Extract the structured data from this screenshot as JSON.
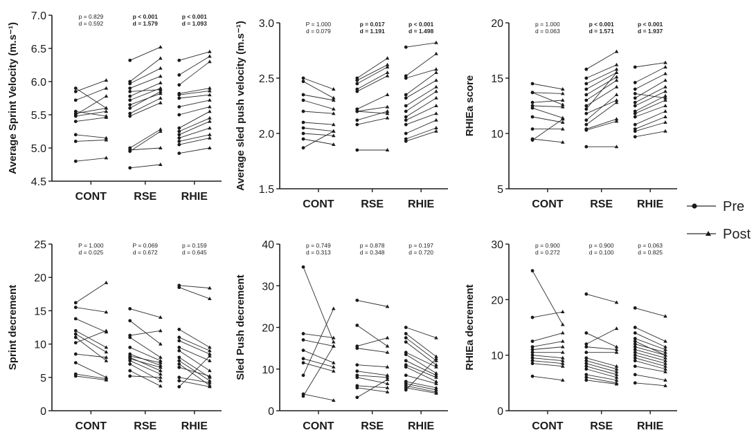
{
  "legend": {
    "pre_label": "Pre",
    "post_label": "Post",
    "pre_marker": "circle",
    "post_marker": "triangle",
    "placement": "right"
  },
  "colors": {
    "line": "#2b2b2b",
    "marker": "#1a1a1a",
    "axis": "#1a1a1a"
  },
  "chart_data": [
    {
      "type": "line",
      "ylabel": "Average Sprint Velocity (m.s⁻¹)",
      "ylim": [
        4.5,
        7.0
      ],
      "yticks": [
        "4.5",
        "5.0",
        "5.5",
        "6.0",
        "6.5",
        "7.0"
      ],
      "categories": [
        "CONT",
        "RSE",
        "RHIE"
      ],
      "stats": [
        {
          "p": "p = 0.829",
          "d": "d = 0.592",
          "bold": false
        },
        {
          "p": "p < 0.001",
          "d": "d = 1.579",
          "bold": true
        },
        {
          "p": "p < 0.001",
          "d": "d = 1.093",
          "bold": true
        }
      ],
      "pairs": [
        [
          [
            5.9,
            5.6
          ],
          [
            5.85,
            6.02
          ],
          [
            5.5,
            5.78
          ],
          [
            5.48,
            5.55
          ],
          [
            5.4,
            5.46
          ],
          [
            5.55,
            5.48
          ],
          [
            5.2,
            5.15
          ],
          [
            5.1,
            5.12
          ],
          [
            4.8,
            4.85
          ],
          [
            5.72,
            5.9
          ],
          [
            5.52,
            5.6
          ]
        ],
        [
          [
            6.32,
            6.52
          ],
          [
            6.0,
            6.35
          ],
          [
            5.97,
            6.2
          ],
          [
            5.9,
            6.08
          ],
          [
            5.85,
            5.88
          ],
          [
            5.78,
            5.98
          ],
          [
            5.72,
            5.9
          ],
          [
            5.65,
            5.82
          ],
          [
            5.6,
            5.85
          ],
          [
            5.52,
            5.75
          ],
          [
            5.48,
            5.68
          ],
          [
            5.0,
            5.28
          ],
          [
            4.95,
            5.25
          ],
          [
            4.97,
            5.0
          ],
          [
            4.7,
            4.75
          ]
        ],
        [
          [
            6.32,
            6.45
          ],
          [
            6.1,
            6.38
          ],
          [
            5.95,
            6.3
          ],
          [
            5.82,
            5.9
          ],
          [
            5.8,
            5.86
          ],
          [
            5.75,
            5.8
          ],
          [
            5.62,
            5.72
          ],
          [
            5.5,
            5.62
          ],
          [
            5.25,
            5.45
          ],
          [
            5.2,
            5.4
          ],
          [
            5.15,
            5.3
          ],
          [
            5.1,
            5.2
          ],
          [
            5.05,
            5.15
          ],
          [
            4.92,
            5.0
          ],
          [
            5.3,
            5.55
          ]
        ]
      ]
    },
    {
      "type": "line",
      "ylabel": "Average sled push velocity (m.s⁻¹)",
      "ylim": [
        1.5,
        3.0
      ],
      "yticks": [
        "1.5",
        "2.0",
        "2.5",
        "3.0"
      ],
      "categories": [
        "CONT",
        "RSE",
        "RHIE"
      ],
      "stats": [
        {
          "p": "P = 1.000",
          "d": "d = 0.079",
          "bold": false
        },
        {
          "p": "p = 0.017",
          "d": "d = 1.191",
          "bold": true
        },
        {
          "p": "p < 0.001",
          "d": "d = 1.498",
          "bold": true
        }
      ],
      "pairs": [
        [
          [
            2.5,
            2.4
          ],
          [
            2.47,
            2.32
          ],
          [
            2.35,
            2.3
          ],
          [
            2.3,
            2.22
          ],
          [
            2.2,
            2.18
          ],
          [
            2.1,
            2.08
          ],
          [
            2.05,
            2.02
          ],
          [
            2.0,
            1.98
          ],
          [
            1.95,
            1.9
          ],
          [
            1.87,
            2.02
          ]
        ],
        [
          [
            2.5,
            2.68
          ],
          [
            2.48,
            2.62
          ],
          [
            2.45,
            2.6
          ],
          [
            2.38,
            2.52
          ],
          [
            2.22,
            2.35
          ],
          [
            2.2,
            2.24
          ],
          [
            2.2,
            2.18
          ],
          [
            2.12,
            2.2
          ],
          [
            2.08,
            2.14
          ],
          [
            1.85,
            1.85
          ],
          [
            2.4,
            2.55
          ]
        ],
        [
          [
            2.78,
            2.82
          ],
          [
            2.52,
            2.72
          ],
          [
            2.5,
            2.58
          ],
          [
            2.35,
            2.55
          ],
          [
            2.32,
            2.48
          ],
          [
            2.25,
            2.42
          ],
          [
            2.2,
            2.38
          ],
          [
            2.15,
            2.32
          ],
          [
            2.12,
            2.25
          ],
          [
            2.08,
            2.18
          ],
          [
            2.0,
            2.12
          ],
          [
            1.95,
            2.05
          ],
          [
            1.93,
            2.02
          ]
        ]
      ]
    },
    {
      "type": "line",
      "ylabel": "RHIEa score",
      "ylim": [
        5,
        20
      ],
      "yticks": [
        "5",
        "10",
        "15",
        "20"
      ],
      "categories": [
        "CONT",
        "RSE",
        "RHIE"
      ],
      "stats": [
        {
          "p": "p = 1.000",
          "d": "d = 0.063",
          "bold": false
        },
        {
          "p": "p < 0.001",
          "d": "d = 1.571",
          "bold": true
        },
        {
          "p": "p < 0.001",
          "d": "d = 1.937",
          "bold": true
        }
      ],
      "pairs": [
        [
          [
            14.5,
            14.0
          ],
          [
            13.7,
            13.6
          ],
          [
            12.8,
            13.0
          ],
          [
            12.5,
            12.4
          ],
          [
            12.3,
            11.4
          ],
          [
            11.5,
            11.0
          ],
          [
            10.4,
            10.4
          ],
          [
            9.5,
            9.2
          ],
          [
            9.4,
            11.3
          ],
          [
            13.7,
            12.6
          ]
        ],
        [
          [
            15.8,
            17.4
          ],
          [
            15.0,
            16.2
          ],
          [
            14.5,
            15.8
          ],
          [
            14.0,
            15.5
          ],
          [
            13.5,
            15.1
          ],
          [
            13.0,
            14.8
          ],
          [
            12.5,
            14.2
          ],
          [
            11.8,
            13.0
          ],
          [
            11.2,
            13.5
          ],
          [
            10.8,
            12.8
          ],
          [
            10.4,
            11.3
          ],
          [
            10.3,
            11.1
          ],
          [
            8.8,
            8.8
          ],
          [
            12.2,
            15.5
          ]
        ],
        [
          [
            16.0,
            16.4
          ],
          [
            14.6,
            16.0
          ],
          [
            14.0,
            15.4
          ],
          [
            13.2,
            14.8
          ],
          [
            12.8,
            14.2
          ],
          [
            12.5,
            13.8
          ],
          [
            12.0,
            13.4
          ],
          [
            11.8,
            13.0
          ],
          [
            11.5,
            12.5
          ],
          [
            10.8,
            12.0
          ],
          [
            10.4,
            11.5
          ],
          [
            10.2,
            11.0
          ],
          [
            9.7,
            10.2
          ],
          [
            13.6,
            13.2
          ]
        ]
      ]
    },
    {
      "type": "line",
      "ylabel": "Sprint decrement",
      "ylim": [
        0,
        25
      ],
      "yticks": [
        "0",
        "5",
        "10",
        "15",
        "20",
        "25"
      ],
      "categories": [
        "CONT",
        "RSE",
        "RHIE"
      ],
      "stats": [
        {
          "p": "P = 1.000",
          "d": "d = 0.025",
          "bold": false
        },
        {
          "p": "P = 0.069",
          "d": "d = 0.672",
          "bold": false
        },
        {
          "p": "p = 0.159",
          "d": "d = 0.645",
          "bold": false
        }
      ],
      "pairs": [
        [
          [
            16.2,
            19.2
          ],
          [
            15.5,
            14.8
          ],
          [
            13.8,
            11.8
          ],
          [
            12.0,
            9.5
          ],
          [
            11.5,
            8.8
          ],
          [
            11.0,
            7.5
          ],
          [
            10.2,
            12.0
          ],
          [
            8.5,
            8.0
          ],
          [
            7.2,
            5.0
          ],
          [
            5.5,
            4.8
          ],
          [
            5.2,
            4.6
          ]
        ],
        [
          [
            15.3,
            14.0
          ],
          [
            13.5,
            10.0
          ],
          [
            11.3,
            12.0
          ],
          [
            11.0,
            8.0
          ],
          [
            9.5,
            7.5
          ],
          [
            8.5,
            6.8
          ],
          [
            8.2,
            7.2
          ],
          [
            8.0,
            6.0
          ],
          [
            7.8,
            6.5
          ],
          [
            7.5,
            5.5
          ],
          [
            7.0,
            4.5
          ],
          [
            6.0,
            3.7
          ],
          [
            5.2,
            5.0
          ]
        ],
        [
          [
            18.8,
            18.4
          ],
          [
            18.5,
            16.8
          ],
          [
            12.2,
            9.5
          ],
          [
            11.0,
            9.0
          ],
          [
            10.5,
            8.5
          ],
          [
            9.5,
            7.5
          ],
          [
            9.0,
            6.0
          ],
          [
            8.0,
            5.0
          ],
          [
            7.5,
            4.5
          ],
          [
            7.0,
            3.8
          ],
          [
            6.5,
            5.2
          ],
          [
            5.0,
            4.2
          ],
          [
            4.5,
            3.6
          ],
          [
            3.6,
            8.2
          ]
        ]
      ]
    },
    {
      "type": "line",
      "ylabel": "Sled Push decrement",
      "ylim": [
        0,
        40
      ],
      "yticks": [
        "0",
        "10",
        "20",
        "30",
        "40"
      ],
      "categories": [
        "CONT",
        "RSE",
        "RHIE"
      ],
      "stats": [
        {
          "p": "p = 0.749",
          "d": "d = 0.313",
          "bold": false
        },
        {
          "p": "p = 0.878",
          "d": "d = 0.348",
          "bold": false
        },
        {
          "p": "p = 0.197",
          "d": "d = 0.720",
          "bold": false
        }
      ],
      "pairs": [
        [
          [
            34.5,
            16.5
          ],
          [
            18.5,
            17.5
          ],
          [
            17.0,
            15.5
          ],
          [
            14.5,
            11.5
          ],
          [
            12.5,
            10.5
          ],
          [
            11.5,
            9.5
          ],
          [
            8.5,
            24.5
          ],
          [
            4.0,
            2.5
          ],
          [
            3.5,
            15.5
          ]
        ],
        [
          [
            26.5,
            25.0
          ],
          [
            20.5,
            15.5
          ],
          [
            15.5,
            17.5
          ],
          [
            15.0,
            14.0
          ],
          [
            11.0,
            10.5
          ],
          [
            9.5,
            8.5
          ],
          [
            8.5,
            8.0
          ],
          [
            8.0,
            6.5
          ],
          [
            6.0,
            5.5
          ],
          [
            5.5,
            4.5
          ],
          [
            3.2,
            7.5
          ]
        ],
        [
          [
            20.0,
            17.5
          ],
          [
            18.5,
            13.0
          ],
          [
            17.5,
            12.0
          ],
          [
            16.5,
            11.0
          ],
          [
            14.0,
            10.5
          ],
          [
            13.5,
            9.0
          ],
          [
            12.0,
            8.5
          ],
          [
            11.0,
            8.0
          ],
          [
            10.5,
            7.0
          ],
          [
            8.5,
            6.5
          ],
          [
            7.0,
            5.5
          ],
          [
            6.5,
            5.0
          ],
          [
            6.0,
            4.5
          ],
          [
            5.5,
            4.2
          ],
          [
            5.0,
            12.5
          ]
        ]
      ]
    },
    {
      "type": "line",
      "ylabel": "RHIEa decrement",
      "ylim": [
        0,
        30
      ],
      "yticks": [
        "0",
        "10",
        "20",
        "30"
      ],
      "categories": [
        "CONT",
        "RSE",
        "RHIE"
      ],
      "stats": [
        {
          "p": "p = 0.900",
          "d": "d = 0.272",
          "bold": false
        },
        {
          "p": "p = 0.900",
          "d": "d = 0.100",
          "bold": false
        },
        {
          "p": "p = 0.063",
          "d": "d = 0.825",
          "bold": false
        }
      ],
      "pairs": [
        [
          [
            25.2,
            15.5
          ],
          [
            16.8,
            17.8
          ],
          [
            12.5,
            14.0
          ],
          [
            11.0,
            11.5
          ],
          [
            10.5,
            10.5
          ],
          [
            10.0,
            9.5
          ],
          [
            9.5,
            9.0
          ],
          [
            9.0,
            8.5
          ],
          [
            8.5,
            8.0
          ],
          [
            6.2,
            5.5
          ],
          [
            11.5,
            12.5
          ]
        ],
        [
          [
            21.0,
            19.5
          ],
          [
            14.0,
            11.5
          ],
          [
            12.0,
            14.8
          ],
          [
            11.5,
            11.0
          ],
          [
            10.5,
            10.5
          ],
          [
            9.5,
            8.0
          ],
          [
            9.0,
            7.5
          ],
          [
            8.5,
            7.0
          ],
          [
            8.0,
            6.5
          ],
          [
            7.5,
            6.0
          ],
          [
            6.5,
            5.5
          ],
          [
            6.0,
            5.0
          ],
          [
            5.5,
            4.8
          ]
        ],
        [
          [
            18.5,
            17.0
          ],
          [
            15.0,
            12.5
          ],
          [
            14.0,
            11.5
          ],
          [
            13.0,
            11.0
          ],
          [
            12.0,
            10.5
          ],
          [
            11.5,
            10.0
          ],
          [
            11.0,
            9.5
          ],
          [
            10.5,
            9.0
          ],
          [
            10.0,
            8.5
          ],
          [
            9.5,
            8.0
          ],
          [
            9.0,
            7.5
          ],
          [
            8.0,
            7.0
          ],
          [
            6.5,
            5.5
          ],
          [
            5.0,
            4.5
          ],
          [
            12.5,
            10.0
          ]
        ]
      ]
    }
  ]
}
